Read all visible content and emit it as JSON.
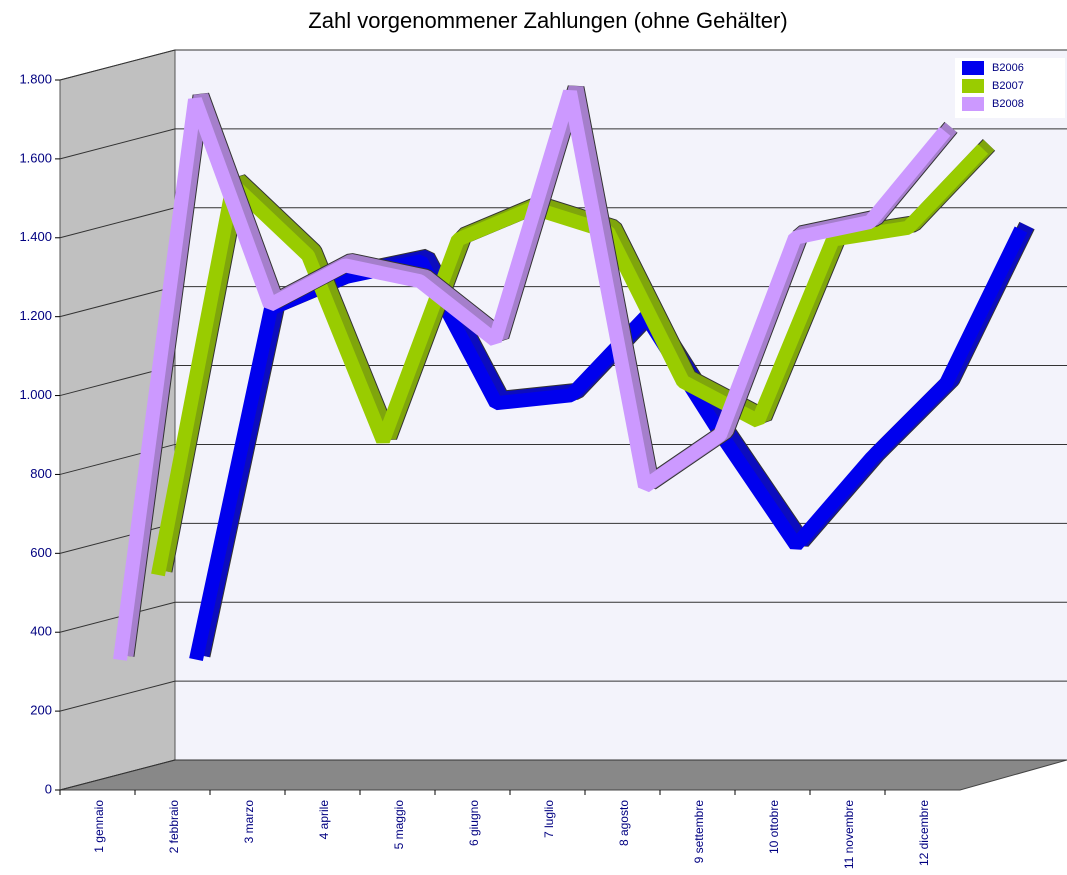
{
  "chart_data": {
    "type": "line",
    "title": "Zahl vorgenommener Zahlungen (ohne Gehälter)",
    "categories": [
      "1 gennaio",
      "2 febbraio",
      "3 marzo",
      "4 aprile",
      "5 maggio",
      "6 giugno",
      "7 luglio",
      "8 agosto",
      "9 settembre",
      "10 ottobre",
      "11 novembre",
      "12 dicembre"
    ],
    "series": [
      {
        "name": "B2006",
        "color": "#0000ee",
        "values": [
          280,
          1170,
          1250,
          1290,
          930,
          950,
          1150,
          850,
          570,
          790,
          980,
          1370
        ]
      },
      {
        "name": "B2007",
        "color": "#99cc00",
        "values": [
          520,
          1510,
          1330,
          860,
          1370,
          1450,
          1390,
          1010,
          910,
          1370,
          1400,
          1600
        ]
      },
      {
        "name": "B2008",
        "color": "#cc99ff",
        "values": [
          330,
          1750,
          1230,
          1330,
          1290,
          1140,
          1770,
          770,
          900,
          1400,
          1440,
          1670
        ]
      }
    ],
    "ylim": [
      0,
      1800
    ],
    "yticks": [
      0,
      200,
      400,
      600,
      800,
      {
        "value": 1000,
        "label": "1.000"
      },
      {
        "value": 1200,
        "label": "1.200"
      },
      {
        "value": 1400,
        "label": "1.400"
      },
      {
        "value": 1600,
        "label": "1.600"
      },
      {
        "value": 1800,
        "label": "1.800"
      }
    ],
    "grid": true,
    "legend": "top-right"
  }
}
